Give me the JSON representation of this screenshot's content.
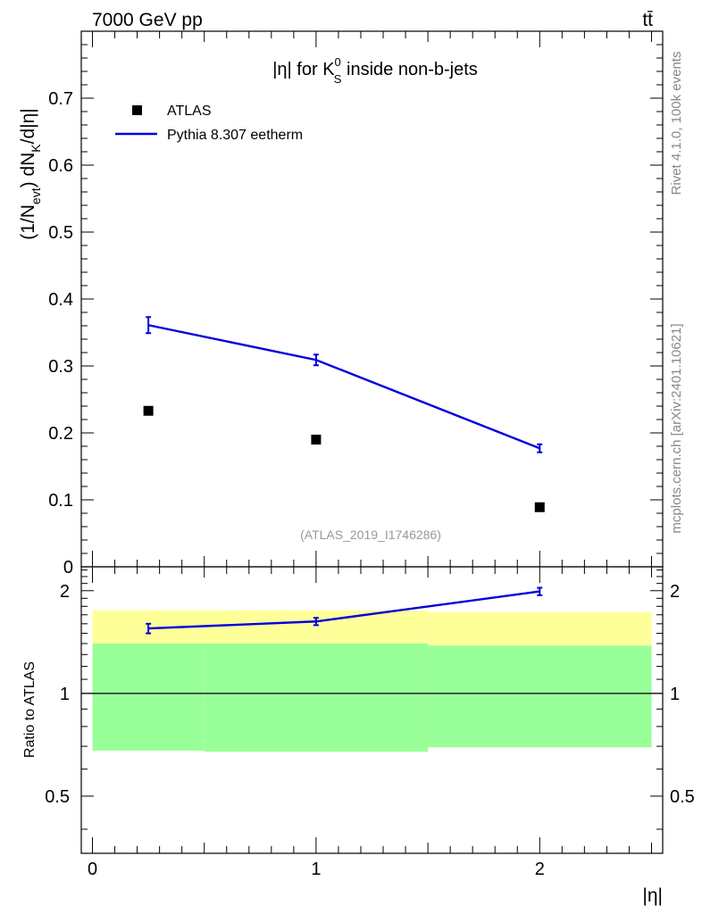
{
  "header": {
    "energy_label": "7000 GeV pp",
    "process_label": "tt̄"
  },
  "side_labels": {
    "rivet": "Rivet 4.1.0,  100k events",
    "mcplots": "mcplots.cern.ch [arXiv:2401.10621]"
  },
  "colors": {
    "mc_line": "#0000dd",
    "data_marker": "#000000",
    "band_inner": "#99ff99",
    "band_outer": "#ffff99",
    "analysis_label": "#999999"
  },
  "chart_data": [
    {
      "type": "line",
      "panel": "main",
      "title_parts": {
        "pre": "|η| for K",
        "sup": "0",
        "sub": "S",
        "post": " inside non-b-jets"
      },
      "ylabel_parts": {
        "a": "(1/N",
        "a_sub": "evt",
        "b": ") dN",
        "b_sub": "K",
        "c": "/d|η|"
      },
      "xlabel": "|η|",
      "analysis_id": "(ATLAS_2019_I1746286)",
      "xlim": [
        -0.05,
        2.55
      ],
      "ylim": [
        0,
        0.8
      ],
      "yticks": [
        0,
        0.1,
        0.2,
        0.3,
        0.4,
        0.5,
        0.6,
        0.7
      ],
      "ytick_labels": [
        "0",
        "0.1",
        "0.2",
        "0.3",
        "0.4",
        "0.5",
        "0.6",
        "0.7"
      ],
      "legend": {
        "position": "top-left",
        "entries": [
          "ATLAS",
          "Pythia 8.307 eetherm"
        ]
      },
      "series": [
        {
          "name": "ATLAS",
          "kind": "marker",
          "x": [
            0.25,
            1.0,
            2.0
          ],
          "y": [
            0.233,
            0.19,
            0.089
          ]
        },
        {
          "name": "Pythia 8.307 eetherm",
          "kind": "line",
          "x": [
            0.25,
            1.0,
            2.0
          ],
          "y": [
            0.361,
            0.309,
            0.177
          ],
          "yerr": [
            0.012,
            0.008,
            0.006
          ]
        }
      ]
    },
    {
      "type": "line",
      "panel": "ratio",
      "ylabel": "Ratio to ATLAS",
      "xlabel": "|η|",
      "xlim": [
        -0.05,
        2.55
      ],
      "ylim": [
        0.34,
        2.35
      ],
      "yscale": "log",
      "yticks": [
        0.5,
        1,
        2
      ],
      "ytick_labels": [
        "0.5",
        "1",
        "2"
      ],
      "xticks": [
        0,
        1,
        2
      ],
      "xtick_labels": [
        "0",
        "1",
        "2"
      ],
      "reference_line": 1,
      "bands": [
        {
          "x0": 0.0,
          "x1": 0.5,
          "outer": [
            0.68,
            1.75
          ],
          "inner": [
            0.68,
            1.4
          ]
        },
        {
          "x0": 0.5,
          "x1": 1.5,
          "outer": [
            0.675,
            1.75
          ],
          "inner": [
            0.675,
            1.4
          ]
        },
        {
          "x0": 1.5,
          "x1": 2.5,
          "outer": [
            0.695,
            1.73
          ],
          "inner": [
            0.695,
            1.38
          ]
        }
      ],
      "series": [
        {
          "name": "Pythia 8.307 eetherm",
          "x": [
            0.25,
            1.0,
            2.0
          ],
          "y": [
            1.55,
            1.625,
            1.99
          ],
          "yerr": [
            0.05,
            0.04,
            0.05
          ]
        }
      ]
    }
  ]
}
